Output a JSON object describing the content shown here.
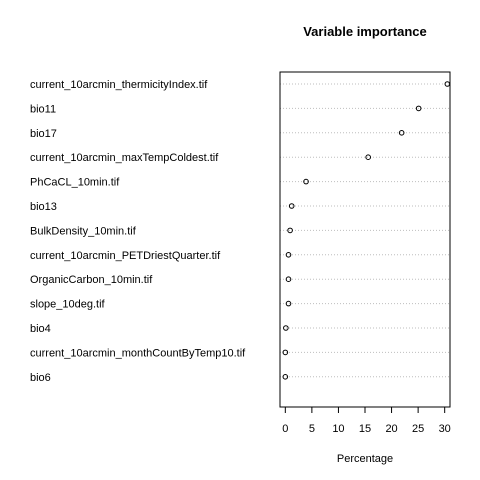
{
  "chart_data": {
    "type": "scatter",
    "subtype": "dotchart",
    "title": "Variable importance",
    "xlabel": "Percentage",
    "ylabel": "",
    "xlim": [
      -1,
      31
    ],
    "xticks": [
      0,
      5,
      10,
      15,
      20,
      25,
      30
    ],
    "grid": "dotted horizontal guide lines",
    "legend": "none",
    "colors": {
      "point": "#000000",
      "grid": "#bebebe",
      "frame": "#000000"
    },
    "categories": [
      "current_10arcmin_thermicityIndex.tif",
      "bio11",
      "bio17",
      "current_10arcmin_maxTempColdest.tif",
      "PhCaCL_10min.tif",
      "bio13",
      "BulkDensity_10min.tif",
      "current_10arcmin_PETDriestQuarter.tif",
      "OrganicCarbon_10min.tif",
      "slope_10deg.tif",
      "bio4",
      "current_10arcmin_monthCountByTemp10.tif",
      "bio6"
    ],
    "values": [
      30.5,
      25.1,
      21.9,
      15.6,
      3.9,
      1.2,
      0.9,
      0.6,
      0.6,
      0.6,
      0.1,
      0.0,
      0.0
    ]
  }
}
